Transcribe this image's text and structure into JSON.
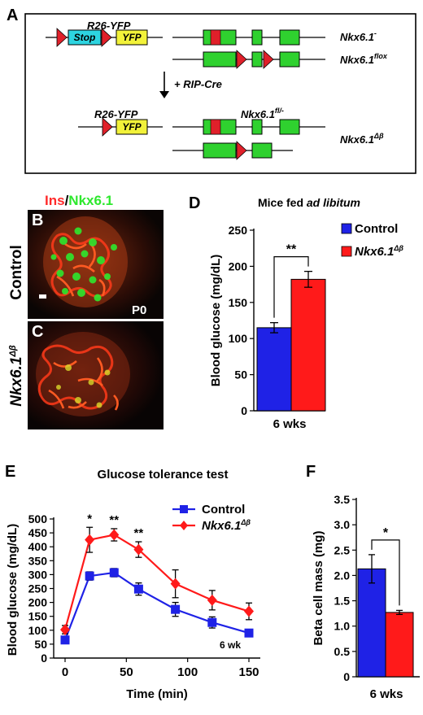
{
  "panel_letters": {
    "A": "A",
    "B": "B",
    "C": "C",
    "D": "D",
    "E": "E",
    "F": "F"
  },
  "schematic": {
    "r26_top": "R26-YFP",
    "stop": "Stop",
    "yfp": "YFP",
    "nkx_minus": "Nkx6.1",
    "nkx_minus_sup": "-",
    "nkx_flox": "Nkx6.1",
    "nkx_flox_sup": "flox",
    "ripcre": "+ RIP-Cre",
    "r26_bottom": "R26-YFP",
    "yfp_bottom": "YFP",
    "nkx_flminus": "Nkx6.1",
    "nkx_flminus_sup": "fl/-",
    "nkx_delta": "Nkx6.1",
    "nkx_delta_sup": "Δβ",
    "colors": {
      "loxp": "#e0202a",
      "stop": "#2dd4e0",
      "yfp": "#f2f23a",
      "exon": "#2fd12f"
    }
  },
  "micro": {
    "title_ins": "Ins",
    "title_slash": "/",
    "title_nkx": "Nkx6.1",
    "control": "Control",
    "delta_label": "Nkx6.1",
    "delta_sup": "Δβ",
    "p0": "P0",
    "colors": {
      "ins": "#ff2a2a",
      "nkx": "#2ee82e"
    }
  },
  "chart_data": [
    {
      "panel": "D",
      "type": "bar",
      "title_pre": "Mice fed ",
      "title_em": "ad libitum",
      "categories": [
        "6 wks"
      ],
      "series": [
        {
          "name": "Control",
          "values": [
            115
          ],
          "errors": [
            7
          ],
          "color": "#1f22e6"
        },
        {
          "name": "Nkx6.1Δβ",
          "values": [
            182
          ],
          "errors": [
            11
          ],
          "color": "#ff1a1a"
        }
      ],
      "significance": "**",
      "ylabel": "Blood glucose (mg/dL)",
      "ylim": [
        0,
        250
      ],
      "yticks": [
        "0",
        "50",
        "100",
        "150",
        "200",
        "250"
      ],
      "legend": "top-right",
      "grid": false
    },
    {
      "panel": "E",
      "type": "line",
      "title": "Glucose tolerance test",
      "xlabel": "Time (min)",
      "ylabel": "Blood glucose (mg/dL)",
      "x": [
        0,
        20,
        40,
        60,
        90,
        120,
        150
      ],
      "xlim": [
        0,
        150
      ],
      "ylim": [
        0,
        500
      ],
      "xticks": [
        "0",
        "50",
        "100",
        "150"
      ],
      "yticks": [
        "0",
        "50",
        "100",
        "150",
        "200",
        "250",
        "300",
        "350",
        "400",
        "450",
        "500"
      ],
      "series": [
        {
          "name": "Control",
          "values": [
            65,
            295,
            307,
            248,
            175,
            128,
            90
          ],
          "errors": [
            10,
            15,
            15,
            22,
            25,
            20,
            12
          ],
          "color": "#1f22e6",
          "marker": "square"
        },
        {
          "name": "Nkx6.1Δβ",
          "values": [
            102,
            425,
            443,
            390,
            267,
            208,
            168
          ],
          "errors": [
            15,
            45,
            22,
            28,
            50,
            35,
            30
          ],
          "color": "#ff1a1a",
          "marker": "diamond"
        }
      ],
      "annotations": [
        "*",
        "**",
        "**"
      ],
      "annotation_x": [
        20,
        40,
        60
      ],
      "corner_note": "6 wk",
      "legend": "top-right",
      "grid": false
    },
    {
      "panel": "F",
      "type": "bar",
      "categories": [
        "6 wks"
      ],
      "series": [
        {
          "name": "Control",
          "values": [
            2.13
          ],
          "errors": [
            0.28
          ],
          "color": "#1f22e6"
        },
        {
          "name": "Nkx6.1Δβ",
          "values": [
            1.27
          ],
          "errors": [
            0.04
          ],
          "color": "#ff1a1a"
        }
      ],
      "significance": "*",
      "ylabel": "Beta cell mass (mg)",
      "ylim": [
        0,
        3.5
      ],
      "yticks": [
        "0",
        "0.5",
        "1.0",
        "1.5",
        "2.0",
        "2.5",
        "3.0",
        "3.5"
      ],
      "grid": false
    }
  ]
}
